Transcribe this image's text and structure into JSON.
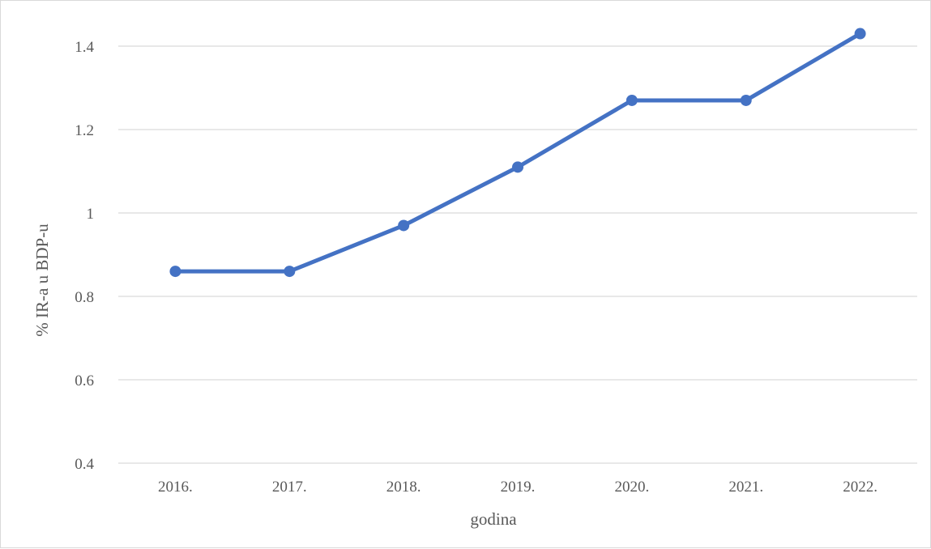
{
  "chart_data": {
    "type": "line",
    "categories": [
      "2016.",
      "2017.",
      "2018.",
      "2019.",
      "2020.",
      "2021.",
      "2022."
    ],
    "series": [
      {
        "values": [
          0.86,
          0.86,
          0.97,
          1.11,
          1.27,
          1.27,
          1.43
        ],
        "color": "#4472c4"
      }
    ],
    "xlabel": "godina",
    "ylabel": "% IR-a u BDP-u",
    "ylim": [
      0.4,
      1.4
    ],
    "yticks": [
      0.4,
      0.6,
      0.8,
      1,
      1.2,
      1.4
    ],
    "ytick_labels": [
      "0.4",
      "0.6",
      "0.8",
      "1",
      "1.2",
      "1.4"
    ],
    "grid": true,
    "gridline_color": "#d9d9d9",
    "legend": "none"
  }
}
